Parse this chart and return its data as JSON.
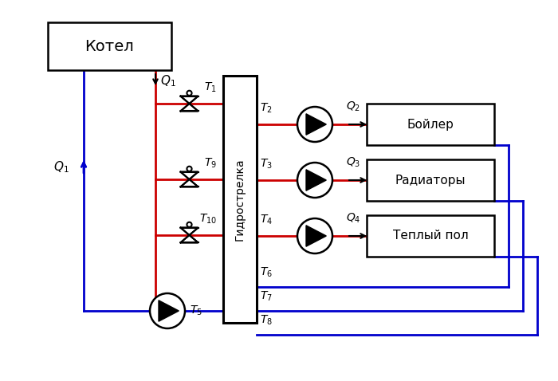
{
  "bg_color": "#ffffff",
  "line_color_red": "#cc0000",
  "line_color_blue": "#0000cc",
  "line_color_black": "#000000",
  "lw_main": 2.0,
  "lw_thin": 1.5,
  "boiler_label": "Котел",
  "hydro_label": "Гидрострелка",
  "consumer_labels": [
    "Бойлер",
    "Радиаторы",
    "Теплый пол"
  ]
}
